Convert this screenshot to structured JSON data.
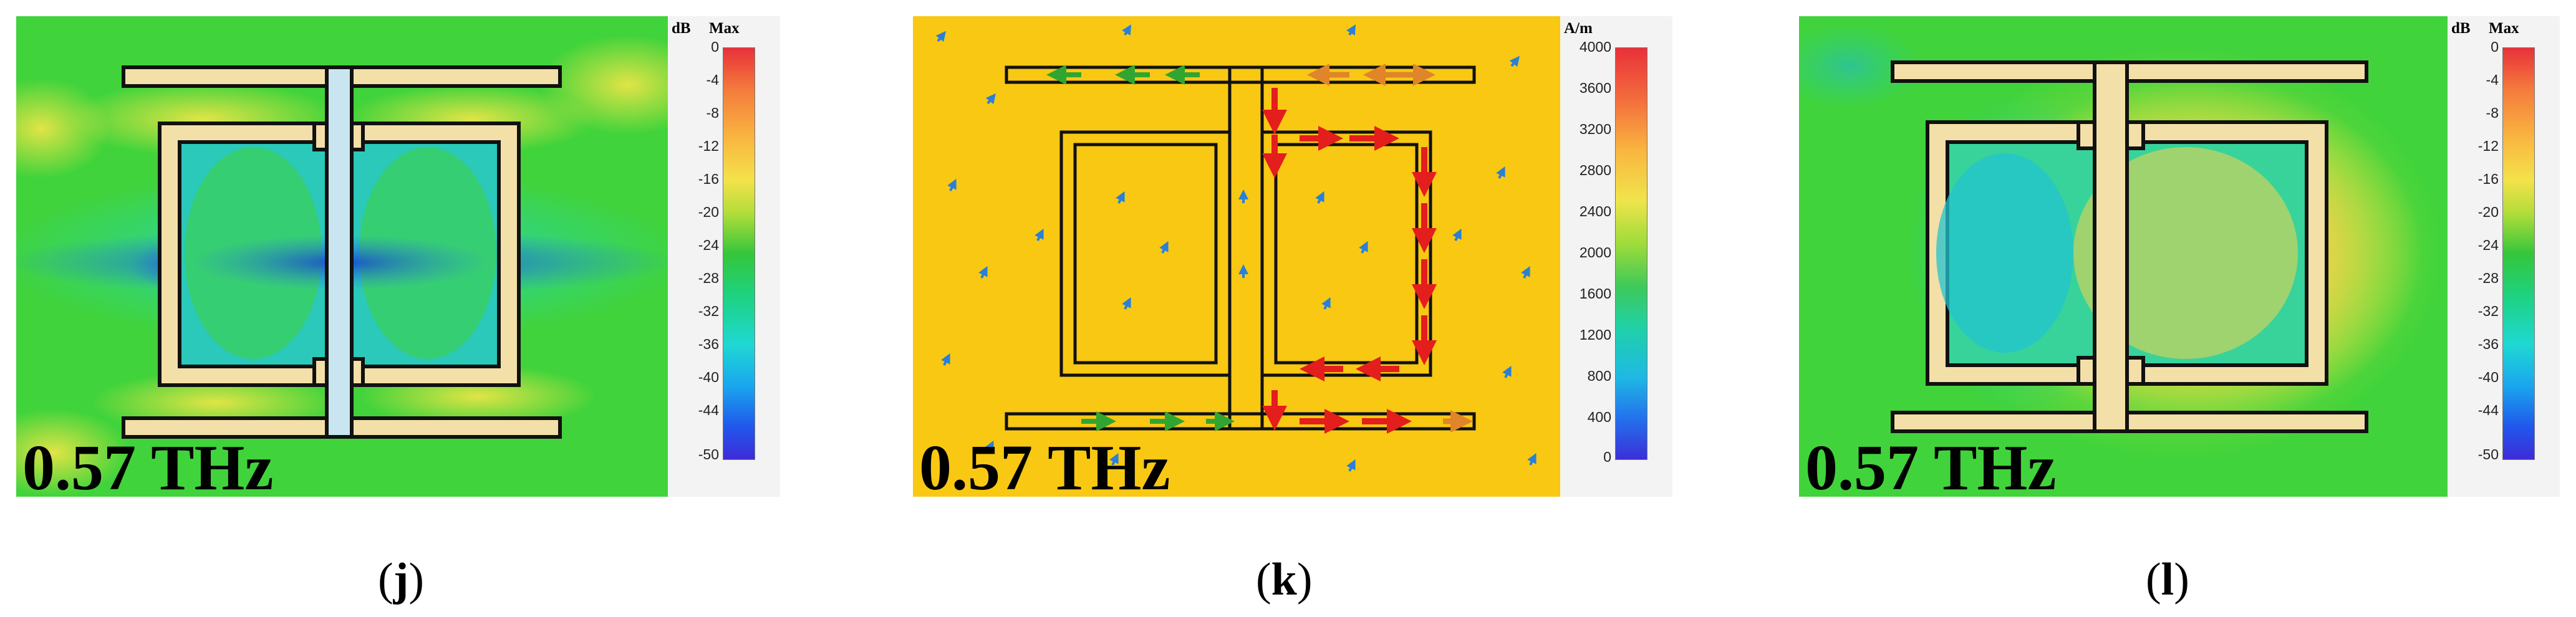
{
  "panels": [
    {
      "id": "j",
      "frequency_label": "0.57 THz",
      "colorbar": {
        "unit": "dB",
        "max_label": "Max",
        "ticks": [
          "0",
          "-4",
          "-8",
          "-12",
          "-16",
          "-20",
          "-24",
          "-28",
          "-32",
          "-36",
          "-40",
          "-44",
          "-50"
        ]
      },
      "caption": {
        "open": "(",
        "letter": "j",
        "close": ")"
      }
    },
    {
      "id": "k",
      "frequency_label": "0.57 THz",
      "colorbar": {
        "unit": "A/m",
        "max_label": "",
        "ticks": [
          "4000",
          "3600",
          "3200",
          "2800",
          "2400",
          "2000",
          "1600",
          "1200",
          "800",
          "400",
          "0"
        ]
      },
      "caption": {
        "open": "(",
        "letter": "k",
        "close": ")"
      }
    },
    {
      "id": "l",
      "frequency_label": "0.57 THz",
      "colorbar": {
        "unit": "dB",
        "max_label": "Max",
        "ticks": [
          "0",
          "-4",
          "-8",
          "-12",
          "-16",
          "-20",
          "-24",
          "-28",
          "-32",
          "-36",
          "-40",
          "-44",
          "-50"
        ]
      },
      "caption": {
        "open": "(",
        "letter": "l",
        "close": ")"
      }
    }
  ],
  "colors": {
    "field_green": "#3fd23a",
    "field_cyan": "#1ec6cf",
    "field_blue": "#1a3fd6",
    "field_yellow": "#f8c813",
    "field_orange": "#f4a83a",
    "metal_fill": "#f3dfa8",
    "metal_fill_blue": "#c9e6f0",
    "outline": "#111111",
    "arrow_red": "#e41d1d",
    "arrow_green": "#31a531",
    "arrow_blue": "#2880d8"
  }
}
